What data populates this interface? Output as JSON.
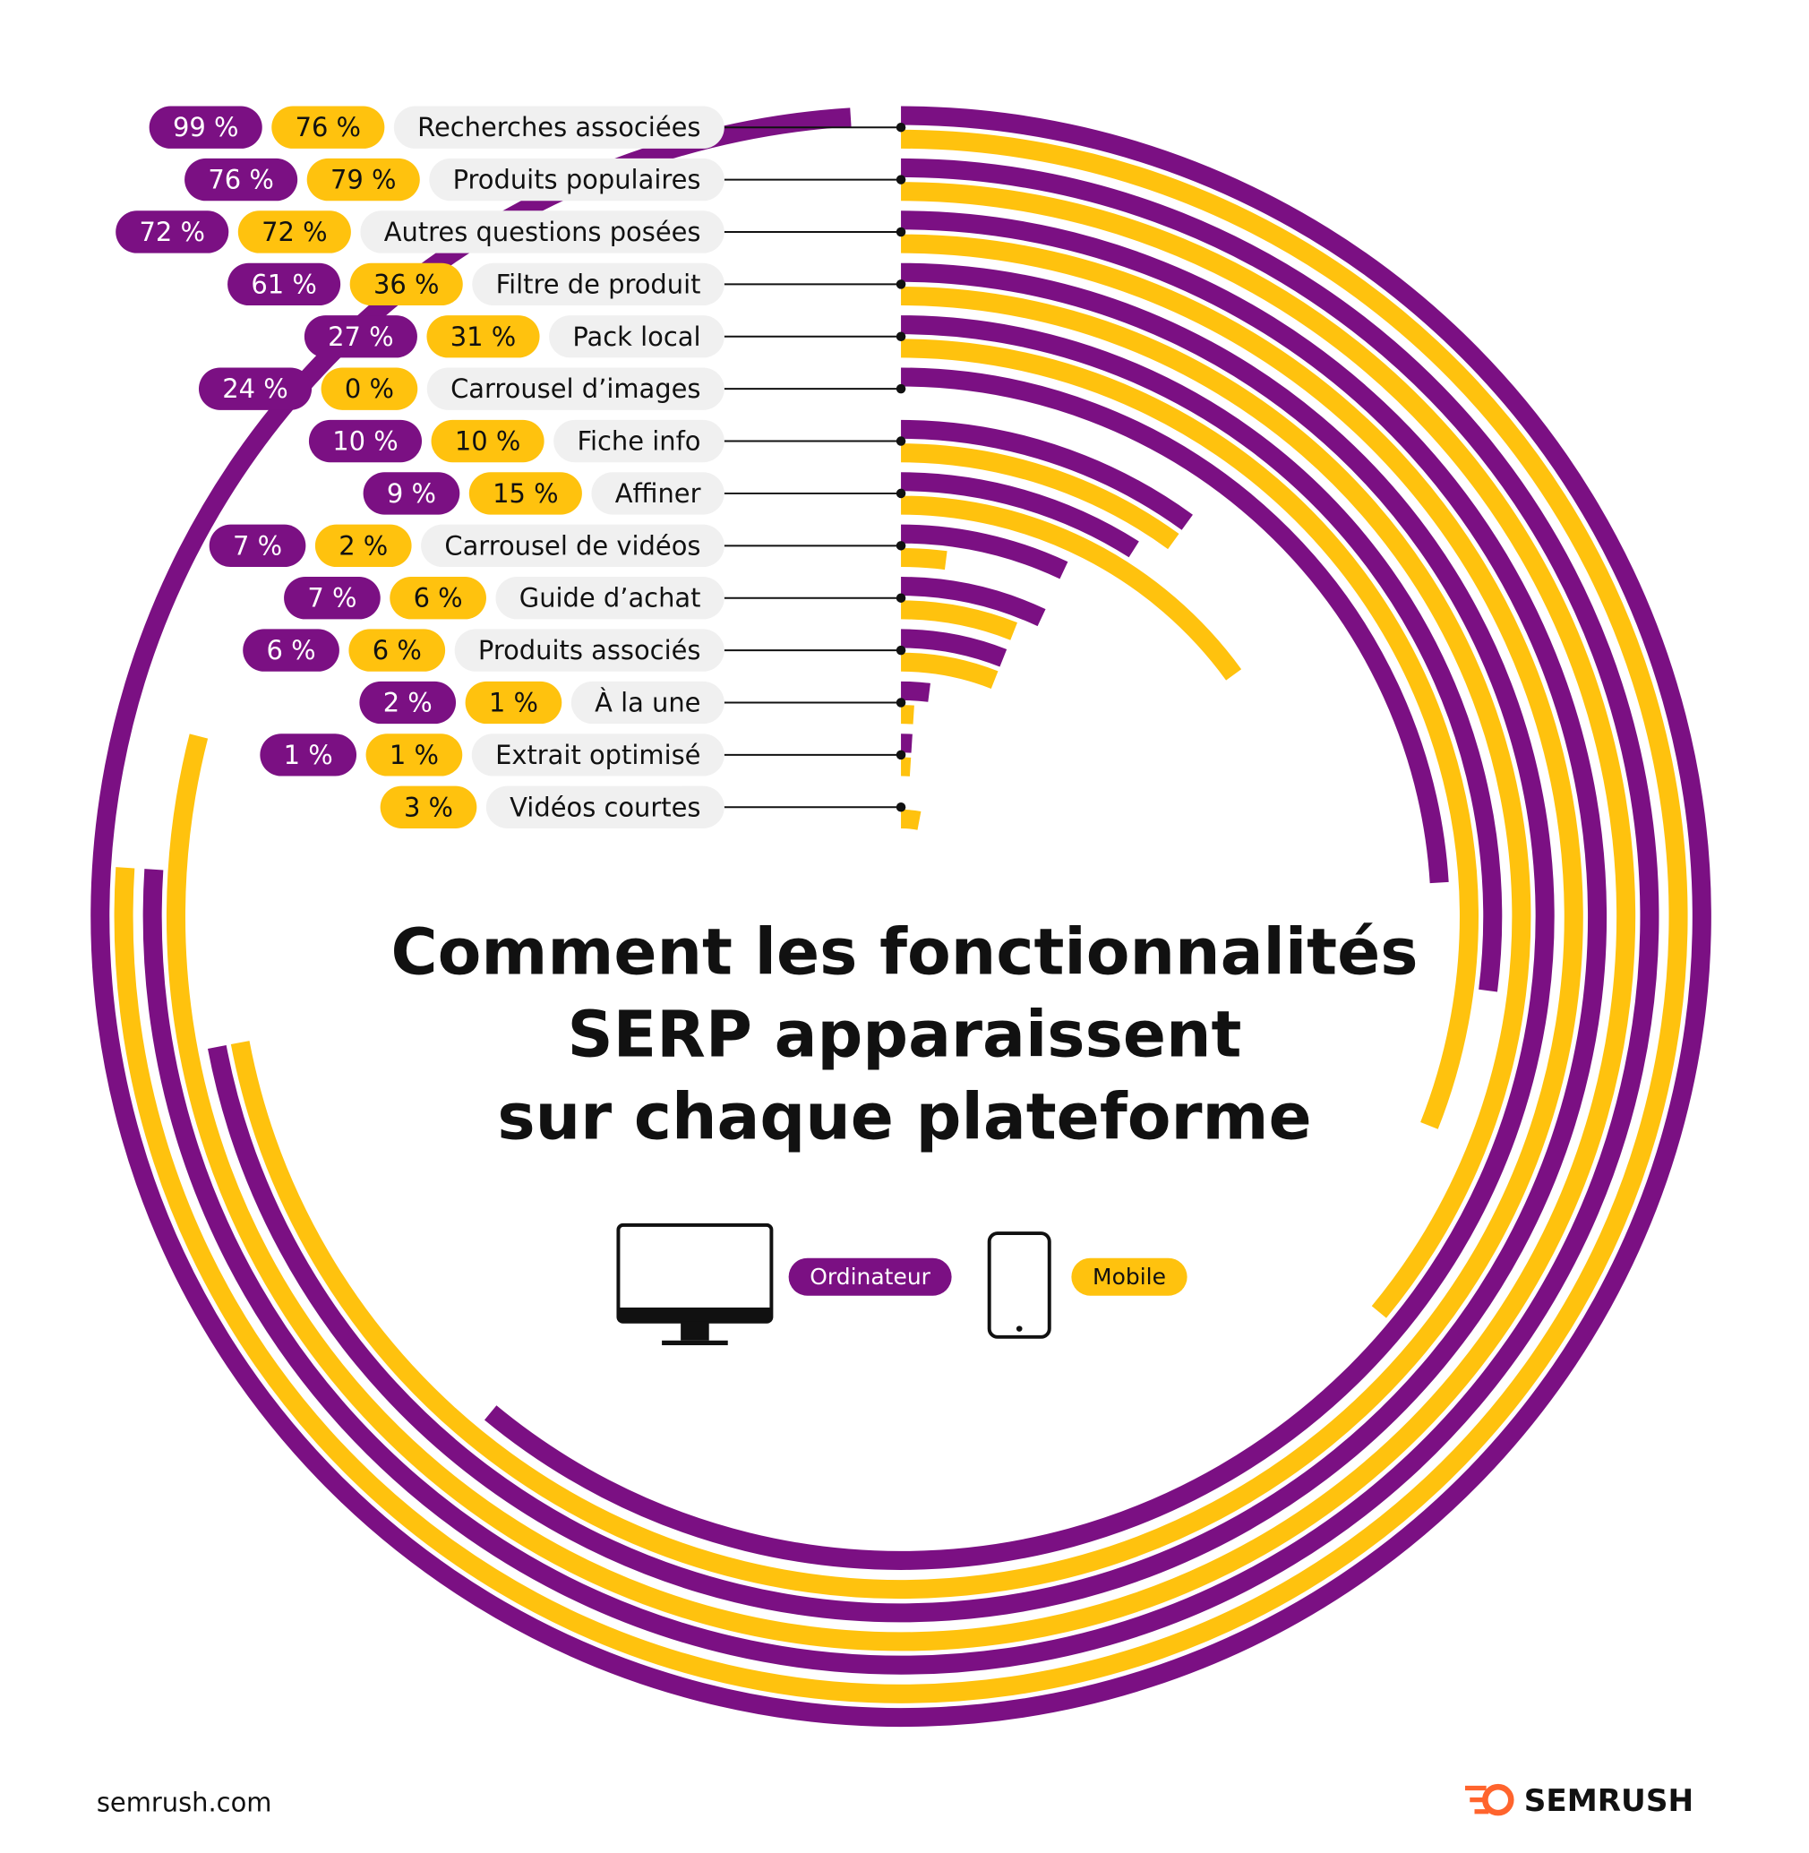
{
  "chart_data": {
    "type": "radial_bar",
    "title": [
      "Comment les fonctionnalités",
      "SERP apparaissent",
      "sur chaque plateforme"
    ],
    "categories": [
      "Recherches associées",
      "Produits populaires",
      "Autres questions posées",
      "Filtre de produit",
      "Pack local",
      "Carrousel d’images",
      "Fiche info",
      "Affiner",
      "Carrousel de vidéos",
      "Guide d’achat",
      "Produits associés",
      "À la une",
      "Extrait optimisé",
      "Vidéos courtes"
    ],
    "series": [
      {
        "name": "Ordinateur",
        "color": "#7b1083",
        "values": [
          99,
          76,
          72,
          61,
          27,
          24,
          10,
          9,
          7,
          7,
          6,
          2,
          1,
          null
        ],
        "value_labels": [
          "99 %",
          "76 %",
          "72 %",
          "61 %",
          "27 %",
          "24 %",
          "10 %",
          "9 %",
          "7 %",
          "7 %",
          "6 %",
          "2 %",
          "1 %",
          null
        ]
      },
      {
        "name": "Mobile",
        "color": "#ffc20e",
        "values": [
          76,
          79,
          72,
          36,
          31,
          0,
          10,
          15,
          2,
          6,
          6,
          1,
          1,
          3
        ],
        "value_labels": [
          "76 %",
          "79 %",
          "72 %",
          "36 %",
          "31 %",
          "0 %",
          "10 %",
          "15 %",
          "2 %",
          "6 %",
          "6 %",
          "1 %",
          "1 %",
          "3 %"
        ]
      }
    ],
    "ylim": [
      0,
      100
    ],
    "source": "semrush.com",
    "brand": "SEMRUSH"
  }
}
